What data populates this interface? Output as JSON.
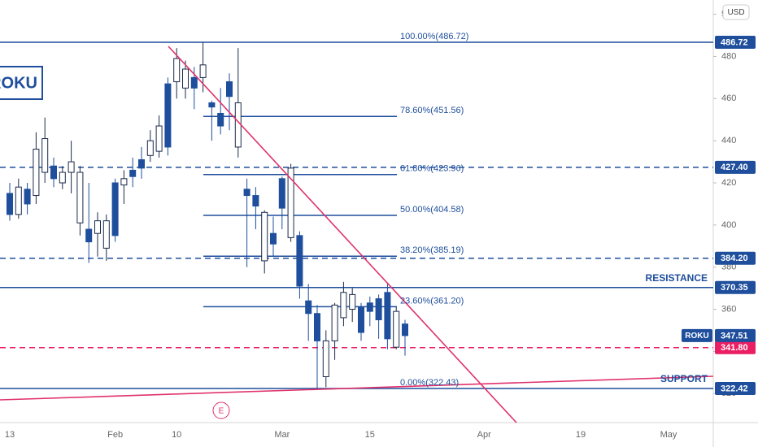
{
  "chart_data": {
    "type": "candlestick",
    "symbol": "ROKU",
    "currency": "USD",
    "categories": [
      "13",
      null,
      null,
      null,
      null,
      null,
      null,
      null,
      null,
      null,
      null,
      null,
      "Feb",
      null,
      null,
      null,
      null,
      null,
      null,
      "10",
      null,
      null,
      null,
      null,
      null,
      null,
      null,
      null,
      null,
      null,
      null,
      "Mar",
      null,
      null,
      null,
      null,
      null,
      null,
      null,
      null,
      null,
      "15",
      null,
      null,
      null,
      null,
      null,
      null,
      null,
      null,
      null,
      null,
      null,
      null,
      "Apr",
      null,
      null,
      null,
      null,
      null,
      null,
      null,
      null,
      null,
      null,
      "19",
      null,
      null,
      null,
      null,
      null,
      null,
      null,
      null,
      null,
      "May"
    ],
    "open": [
      415,
      405,
      417,
      414,
      425,
      428,
      420,
      425,
      401,
      398,
      396,
      389,
      420,
      419,
      426,
      431,
      433,
      435,
      467,
      468,
      465,
      470,
      470,
      458,
      453,
      468,
      437,
      417,
      414,
      383,
      396,
      422,
      394,
      395,
      364,
      358,
      328,
      345,
      356,
      360,
      361,
      363,
      365,
      368,
      342,
      353,
      null,
      null,
      null,
      null,
      null,
      null,
      null,
      null,
      null,
      null,
      null,
      null,
      null,
      null,
      null,
      null,
      null,
      null,
      null,
      null,
      null,
      null,
      null,
      null,
      null,
      null,
      null,
      null,
      null,
      null
    ],
    "high": [
      420,
      422,
      420,
      444,
      451,
      432,
      428,
      440,
      428,
      420,
      406,
      405,
      422,
      426,
      432,
      437,
      445,
      452,
      470,
      484,
      478,
      475,
      486.7,
      459,
      465,
      472,
      484,
      422,
      418,
      407,
      404,
      423,
      429,
      397,
      372,
      362,
      350,
      363,
      373,
      370,
      363,
      366,
      367,
      372,
      361,
      355,
      null,
      null,
      null,
      null,
      null,
      null,
      null,
      null,
      null,
      null,
      null,
      null,
      null,
      null,
      null,
      null,
      null,
      null,
      null,
      null,
      null,
      null,
      null,
      null,
      null,
      null,
      null,
      null,
      null,
      null
    ],
    "low": [
      402,
      403,
      405,
      410,
      420,
      418,
      417,
      415,
      395,
      382,
      385,
      383,
      392,
      410,
      418,
      422,
      430,
      432,
      433,
      460,
      460,
      455,
      463,
      440,
      443,
      445,
      432,
      380,
      398,
      377,
      385,
      398,
      392,
      365,
      345,
      322.4,
      323,
      336,
      352,
      354,
      345,
      352,
      346,
      341,
      341,
      338,
      null,
      null,
      null,
      null,
      null,
      null,
      null,
      null,
      null,
      null,
      null,
      null,
      null,
      null,
      null,
      null,
      null,
      null,
      null,
      null,
      null,
      null,
      null,
      null,
      null,
      null,
      null,
      null,
      null,
      null
    ],
    "close": [
      405,
      418,
      410,
      436,
      441,
      422,
      425,
      430,
      425,
      392,
      402,
      402,
      395,
      422,
      423,
      427,
      440,
      447,
      437,
      479,
      474,
      465,
      476,
      456,
      447,
      461,
      458,
      414,
      409,
      406,
      391,
      408,
      427,
      371,
      358,
      345,
      345,
      362,
      368,
      367,
      349,
      359,
      355,
      346,
      359,
      347.51,
      null,
      null,
      null,
      null,
      null,
      null,
      null,
      null,
      null,
      null,
      null,
      null,
      null,
      null,
      null,
      null,
      null,
      null,
      null,
      null,
      null,
      null,
      null,
      null,
      null,
      null,
      null,
      null,
      null,
      null
    ],
    "up_color": "#ffffff",
    "down_color": "#1e4e9c",
    "ylim": [
      306.2,
      506.8
    ],
    "yticks": [
      320,
      340,
      360,
      380,
      400,
      420,
      440,
      460,
      480,
      500
    ],
    "grid": false,
    "price_lines": [
      {
        "value": 486.72,
        "label": "486.72",
        "style": "solid",
        "color": "#1e4e9c"
      },
      {
        "value": 427.4,
        "label": "427.40",
        "style": "dashed",
        "color": "#1e4e9c"
      },
      {
        "value": 384.2,
        "label": "384.20",
        "style": "dashed",
        "color": "#1e4e9c"
      },
      {
        "value": 370.35,
        "label": "370.35",
        "style": "solid",
        "color": "#1e4e9c"
      },
      {
        "value": 341.8,
        "label": "341.80",
        "style": "dashed",
        "color": "#e91e63"
      },
      {
        "value": 322.42,
        "label": "322.42",
        "style": "solid",
        "color": "#1e4e9c"
      }
    ],
    "last_price": {
      "value": 347.51,
      "label": "347.51"
    },
    "fib_levels": [
      {
        "value": 486.72,
        "label": "100.00%(486.72)",
        "segment": false
      },
      {
        "value": 451.56,
        "label": "78.60%(451.56)",
        "segment": true
      },
      {
        "value": 423.96,
        "label": "61.80%(423.96)",
        "segment": true
      },
      {
        "value": 404.58,
        "label": "50.00%(404.58)",
        "segment": true
      },
      {
        "value": 385.19,
        "label": "38.20%(385.19)",
        "segment": true
      },
      {
        "value": 361.2,
        "label": "23.60%(361.20)",
        "segment": true
      },
      {
        "value": 322.43,
        "label": "0.00%(322.43)",
        "segment": false
      }
    ],
    "annotations": [
      "RESISTANCE",
      "SUPPORT"
    ],
    "event_marker": "E"
  }
}
